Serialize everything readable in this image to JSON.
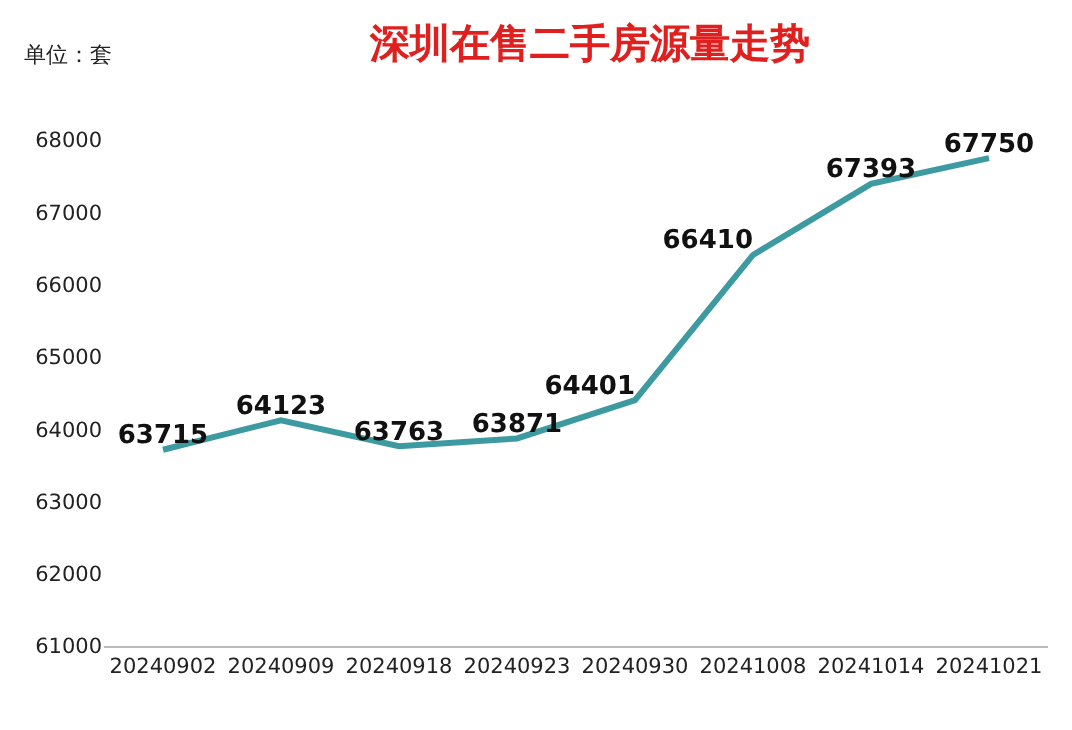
{
  "chart_data": {
    "type": "line",
    "title": "深圳在售二手房源量走势",
    "annotations": [
      "单位：套"
    ],
    "categories": [
      "20240902",
      "20240909",
      "20240918",
      "20240923",
      "20240930",
      "20241008",
      "20241014",
      "20241021"
    ],
    "series": [
      {
        "color": "#3d9aa1",
        "values": [
          63715,
          64123,
          63763,
          63871,
          64401,
          66410,
          67393,
          67750
        ]
      }
    ],
    "ylim": [
      61000,
      68000
    ],
    "yticks": [
      61000,
      62000,
      63000,
      64000,
      65000,
      66000,
      67000,
      68000
    ],
    "data_labels": true,
    "marker": "none",
    "line_style": "solid"
  }
}
